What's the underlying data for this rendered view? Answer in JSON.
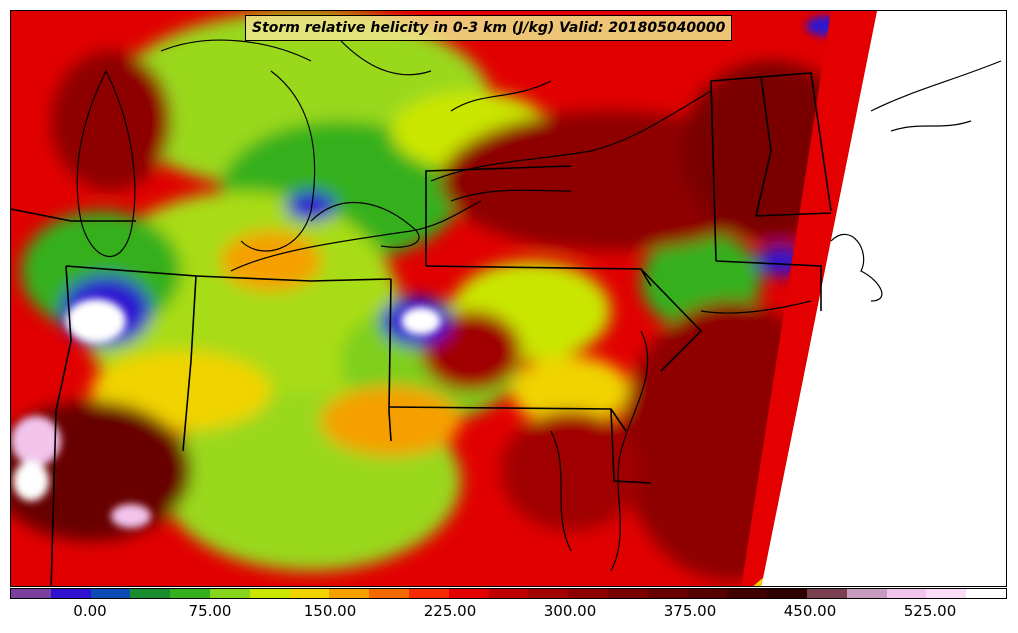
{
  "title": "Storm relative helicity in 0-3 km (J/kg) Valid: 201805040000",
  "colorbar": {
    "colors": [
      "#7b3f9e",
      "#2e12d0",
      "#0a4bb4",
      "#1a8e2e",
      "#34b01e",
      "#86d41c",
      "#c9e600",
      "#f0d300",
      "#f5a000",
      "#f56a00",
      "#f42b00",
      "#e40000",
      "#c00000",
      "#a00000",
      "#8e0000",
      "#7a0000",
      "#680000",
      "#560000",
      "#400000",
      "#2e0000",
      "#7a4050",
      "#c79ac0",
      "#f2c4ec",
      "#fadcf6",
      "#ffffff"
    ],
    "ticks": [
      "0.00",
      "75.00",
      "150.00",
      "225.00",
      "300.00",
      "375.00",
      "450.00",
      "525.00"
    ]
  }
}
